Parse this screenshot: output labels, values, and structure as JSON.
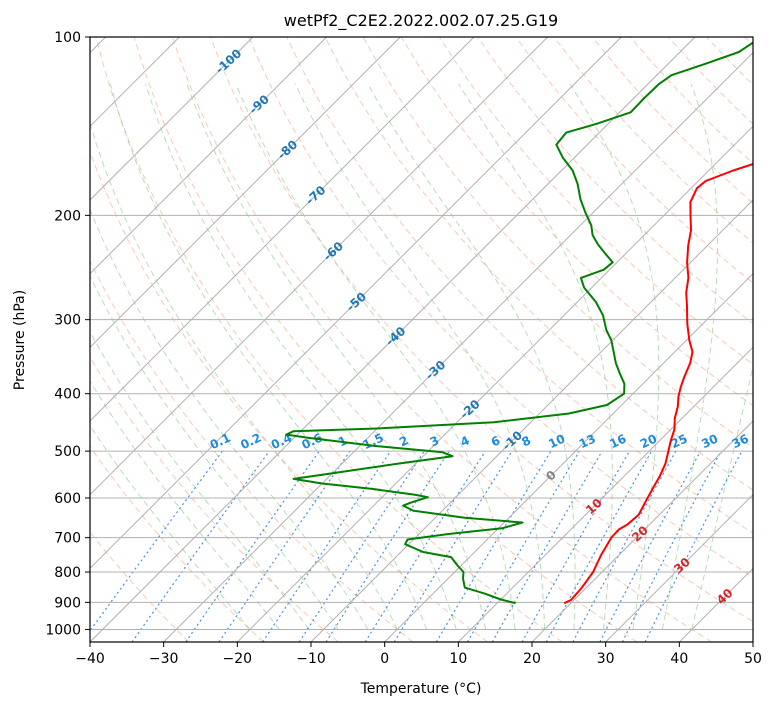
{
  "chart_data": {
    "type": "line",
    "title": "wetPf2_C2E2.2022.002.07.25.G19",
    "xlabel": "Temperature (°C)",
    "ylabel": "Pressure (hPa)",
    "xlim": [
      -40,
      50
    ],
    "ylim": [
      1050,
      100
    ],
    "y_scale": "log",
    "x_ticks": [
      -40,
      -30,
      -20,
      -10,
      0,
      10,
      20,
      30,
      40,
      50
    ],
    "y_ticks": [
      100,
      200,
      300,
      400,
      500,
      600,
      700,
      800,
      900,
      1000
    ],
    "grid": true,
    "background_lines": [
      "dry adiabats",
      "moist adiabats",
      "mixing ratio lines",
      "skewed isotherms"
    ],
    "isotherm_labels": [
      {
        "temp": -100,
        "text": "-100",
        "pressure": 110
      },
      {
        "temp": -90,
        "text": "-90",
        "pressure": 130
      },
      {
        "temp": -80,
        "text": "-80",
        "pressure": 155
      },
      {
        "temp": -70,
        "text": "-70",
        "pressure": 185
      },
      {
        "temp": -60,
        "text": "-60",
        "pressure": 230
      },
      {
        "temp": -50,
        "text": "-50",
        "pressure": 280
      },
      {
        "temp": -40,
        "text": "-40",
        "pressure": 320
      },
      {
        "temp": -30,
        "text": "-30",
        "pressure": 365
      },
      {
        "temp": -20,
        "text": "-20",
        "pressure": 425
      },
      {
        "temp": -10,
        "text": "-10",
        "pressure": 480
      },
      {
        "temp": 0,
        "text": "0",
        "pressure": 550
      },
      {
        "temp": 10,
        "text": "10",
        "pressure": 620
      },
      {
        "temp": 20,
        "text": "20",
        "pressure": 690
      },
      {
        "temp": 30,
        "text": "30",
        "pressure": 780
      },
      {
        "temp": 40,
        "text": "40",
        "pressure": 880
      }
    ],
    "mixing_ratio_labels": [
      "0.1",
      "0.2",
      "0.4",
      "0.6",
      "1",
      "1.5",
      "2",
      "3",
      "4",
      "6",
      "8",
      "10",
      "13",
      "16",
      "20",
      "25",
      "30",
      "36"
    ],
    "series": [
      {
        "role": "temperature",
        "color": "#ff0000",
        "points": [
          [
            19.1,
            903
          ],
          [
            19.6,
            892
          ],
          [
            19.4,
            850
          ],
          [
            18.8,
            800
          ],
          [
            17.6,
            750
          ],
          [
            16.6,
            700
          ],
          [
            16.5,
            678
          ],
          [
            17.0,
            665
          ],
          [
            17.2,
            640
          ],
          [
            16.4,
            610
          ],
          [
            15.6,
            580
          ],
          [
            14.8,
            550
          ],
          [
            13.9,
            525
          ],
          [
            12.6,
            500
          ],
          [
            11.5,
            480
          ],
          [
            10.5,
            460
          ],
          [
            9.0,
            440
          ],
          [
            7.8,
            420
          ],
          [
            6.6,
            405
          ],
          [
            5.6,
            390
          ],
          [
            4.7,
            375
          ],
          [
            3.6,
            355
          ],
          [
            2.4,
            340
          ],
          [
            0.4,
            325
          ],
          [
            -2.1,
            305
          ],
          [
            -4.5,
            285
          ],
          [
            -6.5,
            270
          ],
          [
            -8.2,
            255
          ],
          [
            -10.5,
            240
          ],
          [
            -12.6,
            225
          ],
          [
            -14.3,
            212
          ],
          [
            -16.4,
            200
          ],
          [
            -18.2,
            190
          ],
          [
            -19.2,
            180
          ],
          [
            -19.0,
            175
          ],
          [
            -16.7,
            168
          ],
          [
            -13.6,
            161
          ],
          [
            -11.5,
            155
          ],
          [
            -10.5,
            150
          ],
          [
            -10.0,
            140
          ],
          [
            -9.5,
            130
          ],
          [
            -8.9,
            122
          ],
          [
            -8.5,
            115
          ],
          [
            -8.6,
            108
          ],
          [
            -8.9,
            100
          ]
        ]
      },
      {
        "role": "dewpoint",
        "color": "#008000",
        "points": [
          [
            12.5,
            903
          ],
          [
            10.0,
            890
          ],
          [
            7.0,
            870
          ],
          [
            3.5,
            850
          ],
          [
            2.0,
            820
          ],
          [
            1.2,
            800
          ],
          [
            -0.5,
            780
          ],
          [
            -2.5,
            755
          ],
          [
            -7.0,
            740
          ],
          [
            -10.5,
            718
          ],
          [
            -10.8,
            705
          ],
          [
            -6.0,
            690
          ],
          [
            0.5,
            675
          ],
          [
            2.5,
            660
          ],
          [
            -6.0,
            648
          ],
          [
            -14.0,
            630
          ],
          [
            -16.0,
            618
          ],
          [
            -15.3,
            610
          ],
          [
            -13.8,
            598
          ],
          [
            -16.0,
            592
          ],
          [
            -22.0,
            580
          ],
          [
            -30.0,
            567
          ],
          [
            -34.5,
            557
          ],
          [
            -30.0,
            545
          ],
          [
            -22.5,
            525
          ],
          [
            -16.0,
            510
          ],
          [
            -18.0,
            502
          ],
          [
            -28.0,
            490
          ],
          [
            -38.0,
            475
          ],
          [
            -41.5,
            469
          ],
          [
            -41.0,
            463
          ],
          [
            -30.0,
            458
          ],
          [
            -15.0,
            447
          ],
          [
            -6.0,
            432
          ],
          [
            -2.0,
            418
          ],
          [
            -1.2,
            400
          ],
          [
            -2.5,
            385
          ],
          [
            -4.5,
            370
          ],
          [
            -6.5,
            355
          ],
          [
            -8.3,
            340
          ],
          [
            -10.2,
            325
          ],
          [
            -12.3,
            312
          ],
          [
            -14.7,
            295
          ],
          [
            -17.5,
            280
          ],
          [
            -21.0,
            265
          ],
          [
            -22.8,
            255
          ],
          [
            -20.8,
            247
          ],
          [
            -20.6,
            240
          ],
          [
            -22.8,
            232
          ],
          [
            -25.0,
            224
          ],
          [
            -27.0,
            216
          ],
          [
            -28.5,
            208
          ],
          [
            -31.0,
            198
          ],
          [
            -33.5,
            188
          ],
          [
            -36.0,
            177
          ],
          [
            -38.5,
            168
          ],
          [
            -41.5,
            160
          ],
          [
            -44.2,
            152
          ],
          [
            -44.5,
            145
          ],
          [
            -41.5,
            140
          ],
          [
            -38.5,
            134
          ],
          [
            -38.6,
            127
          ],
          [
            -38.5,
            120
          ],
          [
            -38.0,
            116
          ],
          [
            -35.0,
            111
          ],
          [
            -32.0,
            106
          ],
          [
            -31.0,
            100
          ]
        ]
      }
    ]
  }
}
